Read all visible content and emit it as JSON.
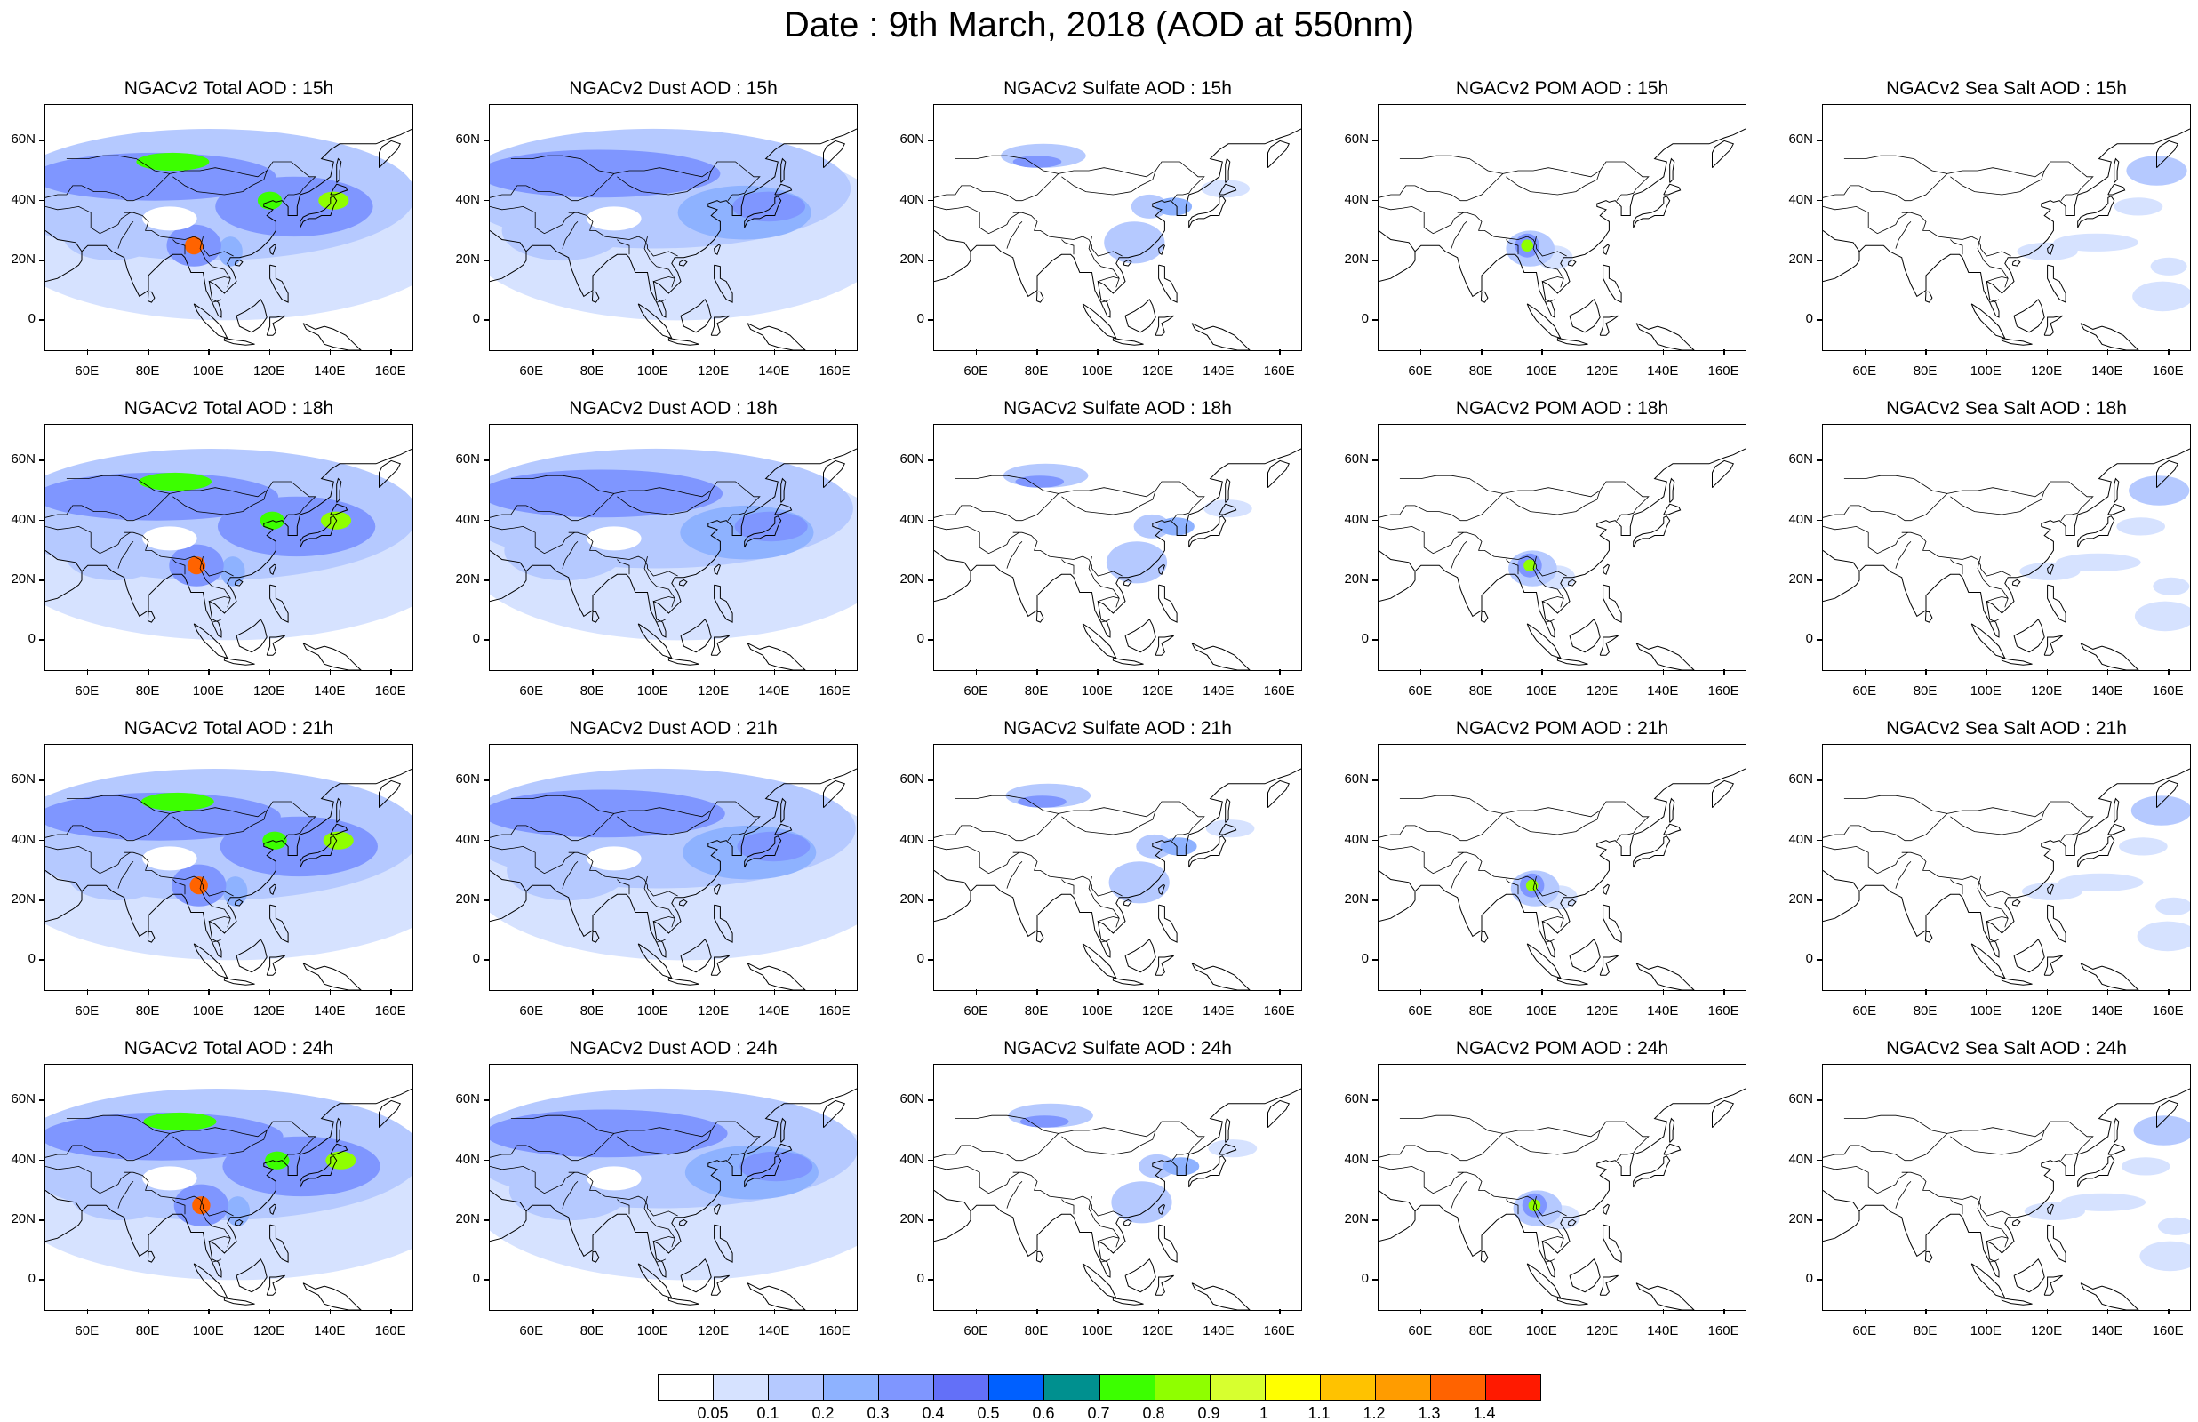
{
  "title": "Date : 9th March, 2018 (AOD at 550nm)",
  "y_ticks": [
    "60N",
    "40N",
    "20N",
    "0"
  ],
  "x_ticks": [
    "60E",
    "80E",
    "100E",
    "120E",
    "140E",
    "160E"
  ],
  "panels": [
    {
      "title": "NGACv2 Total AOD : 15h",
      "species": "total",
      "hour": 15
    },
    {
      "title": "NGACv2 Dust AOD : 15h",
      "species": "dust",
      "hour": 15
    },
    {
      "title": "NGACv2 Sulfate AOD : 15h",
      "species": "sulfate",
      "hour": 15
    },
    {
      "title": "NGACv2 POM AOD : 15h",
      "species": "pom",
      "hour": 15
    },
    {
      "title": "NGACv2 Sea Salt AOD : 15h",
      "species": "seasalt",
      "hour": 15
    },
    {
      "title": "NGACv2 Total AOD : 18h",
      "species": "total",
      "hour": 18
    },
    {
      "title": "NGACv2 Dust AOD : 18h",
      "species": "dust",
      "hour": 18
    },
    {
      "title": "NGACv2 Sulfate AOD : 18h",
      "species": "sulfate",
      "hour": 18
    },
    {
      "title": "NGACv2 POM AOD : 18h",
      "species": "pom",
      "hour": 18
    },
    {
      "title": "NGACv2 Sea Salt AOD : 18h",
      "species": "seasalt",
      "hour": 18
    },
    {
      "title": "NGACv2 Total AOD : 21h",
      "species": "total",
      "hour": 21
    },
    {
      "title": "NGACv2 Dust AOD : 21h",
      "species": "dust",
      "hour": 21
    },
    {
      "title": "NGACv2 Sulfate AOD : 21h",
      "species": "sulfate",
      "hour": 21
    },
    {
      "title": "NGACv2 POM AOD : 21h",
      "species": "pom",
      "hour": 21
    },
    {
      "title": "NGACv2 Sea Salt AOD : 21h",
      "species": "seasalt",
      "hour": 21
    },
    {
      "title": "NGACv2 Total AOD : 24h",
      "species": "total",
      "hour": 24
    },
    {
      "title": "NGACv2 Dust AOD : 24h",
      "species": "dust",
      "hour": 24
    },
    {
      "title": "NGACv2 Sulfate AOD : 24h",
      "species": "sulfate",
      "hour": 24
    },
    {
      "title": "NGACv2 POM AOD : 24h",
      "species": "pom",
      "hour": 24
    },
    {
      "title": "NGACv2 Sea Salt  AOD : 24h",
      "species": "seasalt",
      "hour": 24
    }
  ],
  "colorbar": {
    "labels": [
      "0.05",
      "0.1",
      "0.2",
      "0.3",
      "0.4",
      "0.5",
      "0.6",
      "0.7",
      "0.8",
      "0.9",
      "1",
      "1.1",
      "1.2",
      "1.3",
      "1.4"
    ],
    "colors": [
      "#ffffff",
      "#d6e2ff",
      "#b5c9ff",
      "#8eb2ff",
      "#7f96ff",
      "#6370f8",
      "#0060ff",
      "#00908f",
      "#3cff00",
      "#8fff00",
      "#d7ff2f",
      "#ffff00",
      "#ffc200",
      "#ff9c00",
      "#ff6300",
      "#ff1a00"
    ]
  }
}
